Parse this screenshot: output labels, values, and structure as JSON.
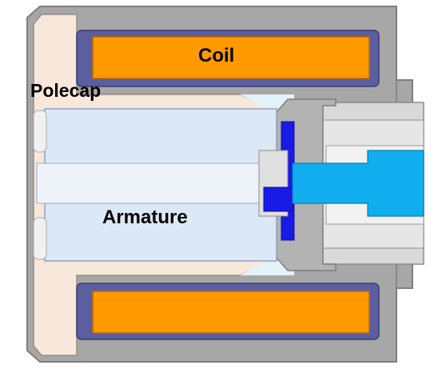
{
  "labels": {
    "coil": "Coil",
    "polecap": "Polecap",
    "armature": "Armature"
  },
  "colors": {
    "housing": "#A7A7A7",
    "housing_dark": "#7E7E7E",
    "housing_light": "#D9D9D9",
    "polecap": "#F8E8DC",
    "coil": "#FF9900",
    "coil_bobbin": "#5B5FA0",
    "armature": "#DCE8F6",
    "armature_edge": "#8FA3C0",
    "valve_blue": "#1A1AE6",
    "pin_cyan": "#11AEEF",
    "gap": "#E3F2FB"
  }
}
